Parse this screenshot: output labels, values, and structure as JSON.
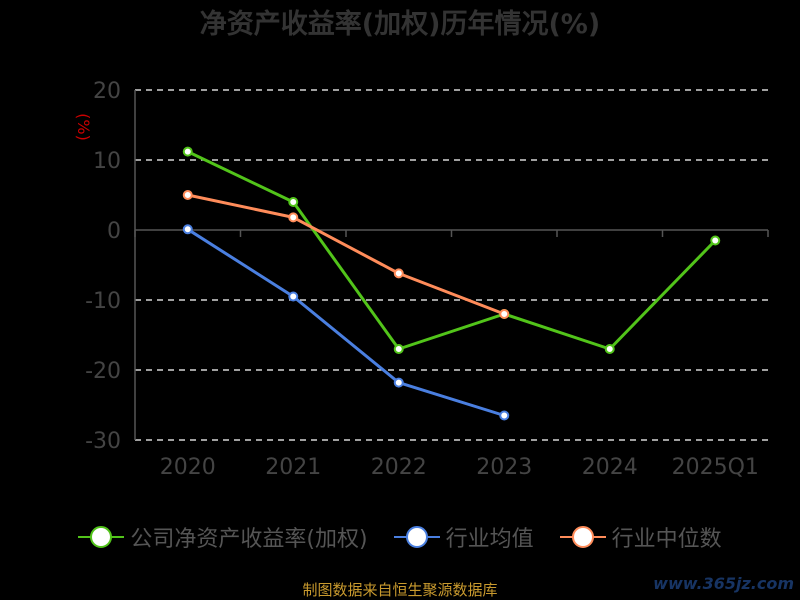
{
  "chart_data": {
    "type": "line",
    "title": "净资产收益率(加权)历年情况(%)",
    "ylabel": "(%)",
    "categories": [
      "2020",
      "2021",
      "2022",
      "2023",
      "2024",
      "2025Q1"
    ],
    "ylim": [
      -30,
      20
    ],
    "yticks": [
      20,
      10,
      0,
      -10,
      -20,
      -30
    ],
    "grid": true,
    "legend_position": "bottom",
    "series": [
      {
        "name": "公司净资产收益率(加权)",
        "color": "#52c41a",
        "values": [
          11.2,
          4.0,
          -17.0,
          -12.0,
          -17.0,
          -1.5
        ]
      },
      {
        "name": "行业均值",
        "color": "#4a7fe0",
        "values": [
          0.1,
          -9.5,
          -21.8,
          -26.5,
          null,
          null
        ]
      },
      {
        "name": "行业中位数",
        "color": "#ff8c5a",
        "values": [
          5.0,
          1.8,
          -6.2,
          -12.0,
          null,
          null
        ]
      }
    ]
  },
  "footer": {
    "source": "制图数据来自恒生聚源数据库",
    "watermark": "www.365jz.com"
  }
}
